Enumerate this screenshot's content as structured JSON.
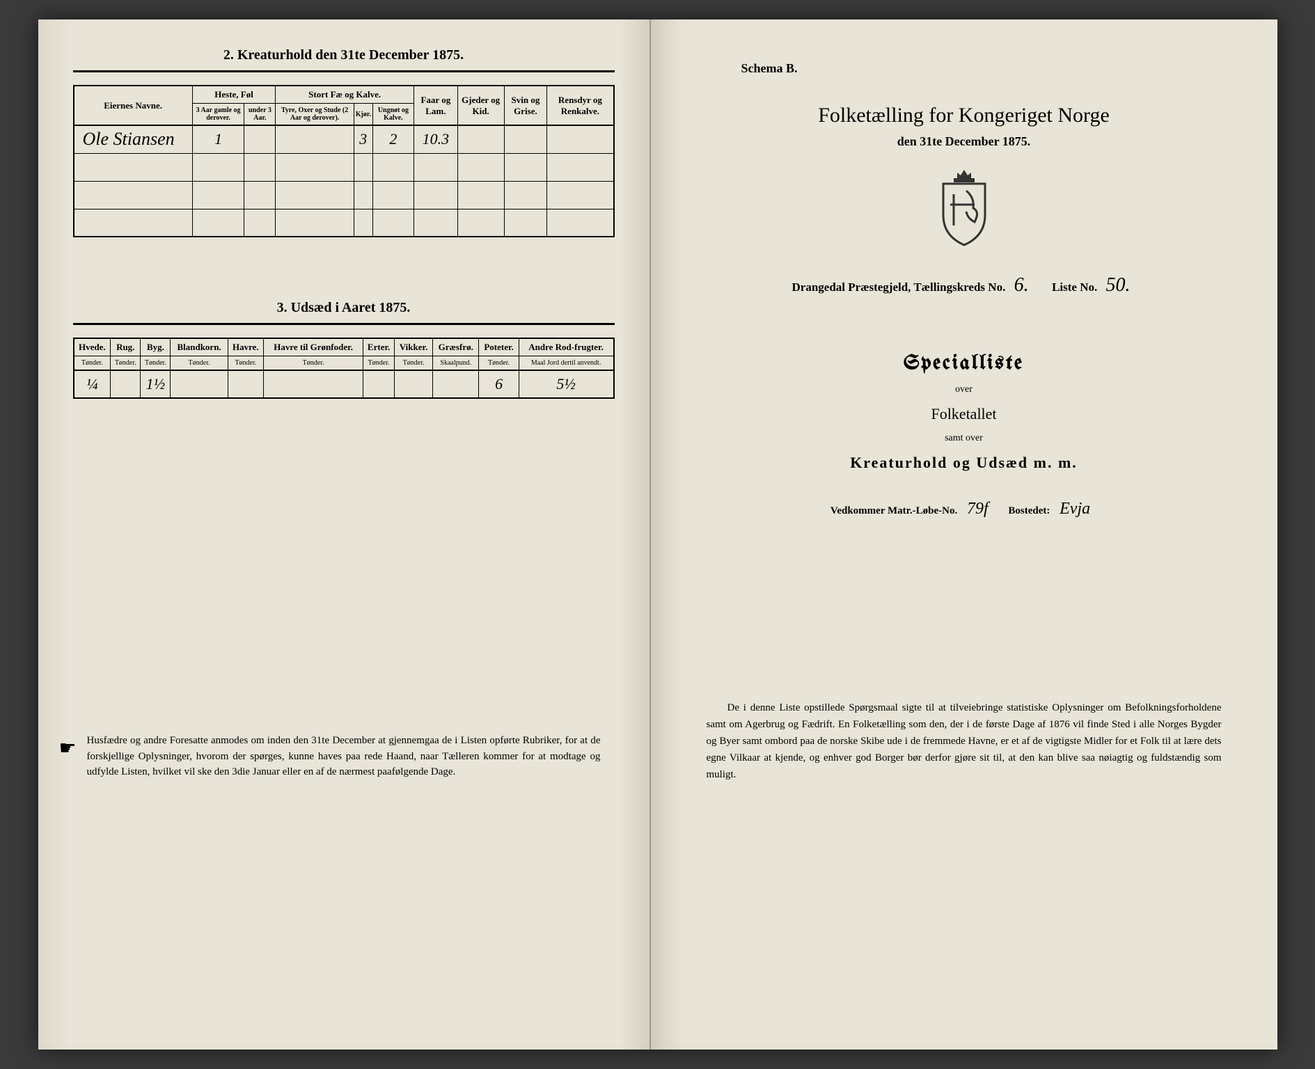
{
  "left": {
    "section2": {
      "title": "2. Kreaturhold den 31te December 1875.",
      "col_eier": "Eiernes Navne.",
      "grp_heste": "Heste, Føl",
      "grp_stort": "Stort Fæ og Kalve.",
      "col_faar": "Faar og Lam.",
      "col_gjed": "Gjeder og Kid.",
      "col_svin": "Svin og Grise.",
      "col_rens": "Rensdyr og Renkalve.",
      "sub_h1": "3 Aar gamle og derover.",
      "sub_h2": "under 3 Aar.",
      "sub_s1": "Tyre, Oxer og Stude (2 Aar og derover).",
      "sub_s2": "Kjør.",
      "sub_s3": "Ungnøt og Kalve.",
      "row": {
        "name": "Ole Stiansen",
        "h1": "1",
        "h2": "",
        "s1": "",
        "s2": "3",
        "s3": "2",
        "faar": "10.3",
        "gjed": "",
        "svin": "",
        "rens": ""
      }
    },
    "section3": {
      "title": "3. Udsæd i Aaret 1875.",
      "cols": [
        "Hvede.",
        "Rug.",
        "Byg.",
        "Blandkorn.",
        "Havre.",
        "Havre til Grønfoder.",
        "Erter.",
        "Vikker.",
        "Græsfrø.",
        "Poteter.",
        "Andre Rod-frugter."
      ],
      "units": [
        "Tønder.",
        "Tønder.",
        "Tønder.",
        "Tønder.",
        "Tønder.",
        "Tønder.",
        "Tønder.",
        "Tønder.",
        "Skaalpund.",
        "Tønder.",
        "Maal Jord dertil anvendt."
      ],
      "row": [
        "¼",
        "",
        "1½",
        "",
        "",
        "",
        "",
        "",
        "",
        "6",
        "5½"
      ]
    },
    "footer": "Husfædre og andre Foresatte anmodes om inden den 31te December at gjennemgaa de i Listen opførte Rubriker, for at de forskjellige Oplysninger, hvorom der spørges, kunne haves paa rede Haand, naar Tælleren kommer for at modtage og udfylde Listen, hvilket vil ske den 3die Januar eller en af de nærmest paafølgende Dage."
  },
  "right": {
    "schema": "Schema B.",
    "main_title": "Folketælling for Kongeriget Norge",
    "sub_date": "den 31te December 1875.",
    "district_prefix": "Drangedal Præstegjeld, Tællingskreds No.",
    "kreds_no": "6.",
    "liste_label": "Liste No.",
    "liste_no": "50.",
    "special": "Specialliste",
    "over": "over",
    "folketallet": "Folketallet",
    "samt": "samt over",
    "kreatur": "Kreaturhold og Udsæd m. m.",
    "vedk_label": "Vedkommer Matr.-Løbe-No.",
    "matr_no": "79f",
    "bosted_label": "Bostedet:",
    "bosted": "Evja",
    "footer": "De i denne Liste opstillede Spørgsmaal sigte til at tilveiebringe statistiske Oplysninger om Befolkningsforholdene samt om Agerbrug og Fædrift. En Folketælling som den, der i de første Dage af 1876 vil finde Sted i alle Norges Bygder og Byer samt ombord paa de norske Skibe ude i de fremmede Havne, er et af de vigtigste Midler for et Folk til at lære dets egne Vilkaar at kjende, og enhver god Borger bør derfor gjøre sit til, at den kan blive saa nøiagtig og fuldstændig som muligt."
  }
}
